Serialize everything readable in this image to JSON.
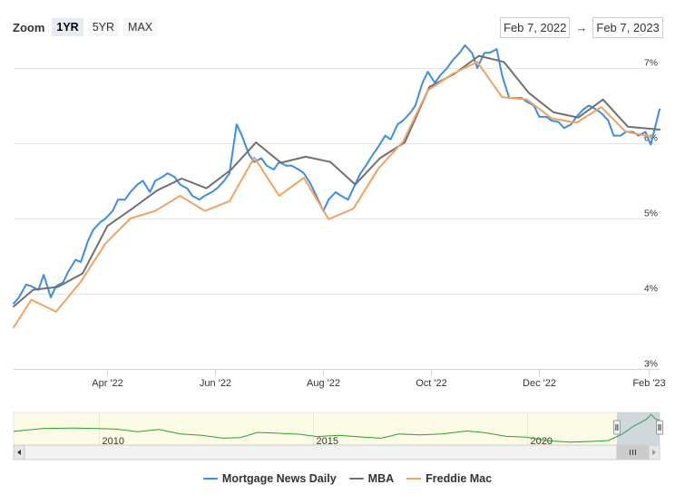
{
  "zoom": {
    "label": "Zoom",
    "buttons": [
      "1YR",
      "5YR",
      "MAX"
    ],
    "active": "1YR"
  },
  "range": {
    "from": "Feb 7, 2022",
    "arrow": "→",
    "to": "Feb 7, 2023"
  },
  "colors": {
    "mnd": "#3d8ee0",
    "mba": "#707070",
    "freddie": "#f2a25f",
    "grid": "#e6e6e6",
    "navigator_fill": "#fcfce6",
    "navigator_line": "#2ca02c"
  },
  "chart_data": {
    "type": "line",
    "ylim": [
      3,
      7.3
    ],
    "y_ticks": [
      3,
      4,
      5,
      6,
      7
    ],
    "y_tick_labels": [
      "3%",
      "4%",
      "5%",
      "6%",
      "7%"
    ],
    "x_range": [
      "2022-02-07",
      "2023-02-07"
    ],
    "x_ticks": [
      "2022-04-01",
      "2022-06-01",
      "2022-08-01",
      "2022-10-01",
      "2022-12-01",
      "2023-02-01"
    ],
    "x_tick_labels": [
      "Apr '22",
      "Jun '22",
      "Aug '22",
      "Oct '22",
      "Dec '22",
      "Feb '23"
    ],
    "series": [
      {
        "name": "Mortgage News Daily",
        "key": "mnd",
        "points": [
          [
            "2022-02-07",
            3.87
          ],
          [
            "2022-02-10",
            3.95
          ],
          [
            "2022-02-14",
            4.12
          ],
          [
            "2022-02-17",
            4.1
          ],
          [
            "2022-02-21",
            4.05
          ],
          [
            "2022-02-24",
            4.25
          ],
          [
            "2022-02-28",
            3.95
          ],
          [
            "2022-03-03",
            4.1
          ],
          [
            "2022-03-07",
            4.15
          ],
          [
            "2022-03-10",
            4.3
          ],
          [
            "2022-03-14",
            4.45
          ],
          [
            "2022-03-17",
            4.42
          ],
          [
            "2022-03-21",
            4.7
          ],
          [
            "2022-03-24",
            4.85
          ],
          [
            "2022-03-28",
            4.95
          ],
          [
            "2022-03-31",
            5.0
          ],
          [
            "2022-04-04",
            5.1
          ],
          [
            "2022-04-07",
            5.25
          ],
          [
            "2022-04-11",
            5.25
          ],
          [
            "2022-04-14",
            5.35
          ],
          [
            "2022-04-18",
            5.45
          ],
          [
            "2022-04-21",
            5.5
          ],
          [
            "2022-04-25",
            5.35
          ],
          [
            "2022-04-28",
            5.5
          ],
          [
            "2022-05-02",
            5.55
          ],
          [
            "2022-05-05",
            5.6
          ],
          [
            "2022-05-09",
            5.55
          ],
          [
            "2022-05-12",
            5.45
          ],
          [
            "2022-05-16",
            5.4
          ],
          [
            "2022-05-19",
            5.3
          ],
          [
            "2022-05-23",
            5.25
          ],
          [
            "2022-05-26",
            5.3
          ],
          [
            "2022-05-30",
            5.35
          ],
          [
            "2022-06-02",
            5.4
          ],
          [
            "2022-06-06",
            5.5
          ],
          [
            "2022-06-09",
            5.6
          ],
          [
            "2022-06-13",
            6.25
          ],
          [
            "2022-06-16",
            6.1
          ],
          [
            "2022-06-20",
            5.85
          ],
          [
            "2022-06-23",
            5.75
          ],
          [
            "2022-06-27",
            5.8
          ],
          [
            "2022-06-30",
            5.7
          ],
          [
            "2022-07-04",
            5.65
          ],
          [
            "2022-07-07",
            5.75
          ],
          [
            "2022-07-11",
            5.7
          ],
          [
            "2022-07-14",
            5.7
          ],
          [
            "2022-07-18",
            5.65
          ],
          [
            "2022-07-21",
            5.6
          ],
          [
            "2022-07-25",
            5.45
          ],
          [
            "2022-07-28",
            5.3
          ],
          [
            "2022-08-01",
            5.1
          ],
          [
            "2022-08-04",
            5.25
          ],
          [
            "2022-08-08",
            5.35
          ],
          [
            "2022-08-11",
            5.3
          ],
          [
            "2022-08-15",
            5.25
          ],
          [
            "2022-08-18",
            5.4
          ],
          [
            "2022-08-22",
            5.6
          ],
          [
            "2022-08-25",
            5.7
          ],
          [
            "2022-08-29",
            5.85
          ],
          [
            "2022-09-01",
            5.95
          ],
          [
            "2022-09-05",
            6.1
          ],
          [
            "2022-09-08",
            6.05
          ],
          [
            "2022-09-12",
            6.25
          ],
          [
            "2022-09-15",
            6.3
          ],
          [
            "2022-09-19",
            6.4
          ],
          [
            "2022-09-22",
            6.5
          ],
          [
            "2022-09-26",
            6.8
          ],
          [
            "2022-09-29",
            6.95
          ],
          [
            "2022-10-03",
            6.8
          ],
          [
            "2022-10-06",
            6.9
          ],
          [
            "2022-10-10",
            7.0
          ],
          [
            "2022-10-13",
            7.1
          ],
          [
            "2022-10-17",
            7.2
          ],
          [
            "2022-10-20",
            7.3
          ],
          [
            "2022-10-24",
            7.2
          ],
          [
            "2022-10-27",
            7.0
          ],
          [
            "2022-10-31",
            7.2
          ],
          [
            "2022-11-03",
            7.2
          ],
          [
            "2022-11-07",
            7.25
          ],
          [
            "2022-11-10",
            6.9
          ],
          [
            "2022-11-14",
            6.6
          ],
          [
            "2022-11-17",
            6.6
          ],
          [
            "2022-11-21",
            6.6
          ],
          [
            "2022-11-24",
            6.55
          ],
          [
            "2022-11-28",
            6.5
          ],
          [
            "2022-12-01",
            6.35
          ],
          [
            "2022-12-05",
            6.35
          ],
          [
            "2022-12-08",
            6.3
          ],
          [
            "2022-12-12",
            6.28
          ],
          [
            "2022-12-15",
            6.2
          ],
          [
            "2022-12-19",
            6.25
          ],
          [
            "2022-12-22",
            6.35
          ],
          [
            "2022-12-26",
            6.45
          ],
          [
            "2022-12-29",
            6.5
          ],
          [
            "2023-01-02",
            6.45
          ],
          [
            "2023-01-05",
            6.4
          ],
          [
            "2023-01-09",
            6.3
          ],
          [
            "2023-01-12",
            6.1
          ],
          [
            "2023-01-16",
            6.1
          ],
          [
            "2023-01-19",
            6.15
          ],
          [
            "2023-01-23",
            6.15
          ],
          [
            "2023-01-26",
            6.1
          ],
          [
            "2023-01-30",
            6.15
          ],
          [
            "2023-02-02",
            5.98
          ],
          [
            "2023-02-07",
            6.45
          ]
        ]
      },
      {
        "name": "MBA",
        "key": "mba",
        "points": [
          [
            "2022-02-07",
            3.83
          ],
          [
            "2022-02-18",
            4.05
          ],
          [
            "2022-03-04",
            4.09
          ],
          [
            "2022-03-18",
            4.27
          ],
          [
            "2022-04-01",
            4.9
          ],
          [
            "2022-04-15",
            5.13
          ],
          [
            "2022-04-29",
            5.37
          ],
          [
            "2022-05-13",
            5.53
          ],
          [
            "2022-05-27",
            5.4
          ],
          [
            "2022-06-10",
            5.65
          ],
          [
            "2022-06-24",
            6.01
          ],
          [
            "2022-07-08",
            5.74
          ],
          [
            "2022-07-22",
            5.82
          ],
          [
            "2022-08-05",
            5.75
          ],
          [
            "2022-08-19",
            5.45
          ],
          [
            "2022-09-02",
            5.8
          ],
          [
            "2022-09-16",
            6.01
          ],
          [
            "2022-09-30",
            6.75
          ],
          [
            "2022-10-14",
            6.92
          ],
          [
            "2022-10-28",
            7.16
          ],
          [
            "2022-11-11",
            7.08
          ],
          [
            "2022-11-25",
            6.67
          ],
          [
            "2022-12-09",
            6.41
          ],
          [
            "2022-12-23",
            6.34
          ],
          [
            "2023-01-06",
            6.58
          ],
          [
            "2023-01-20",
            6.22
          ],
          [
            "2023-02-07",
            6.18
          ]
        ]
      },
      {
        "name": "Freddie Mac",
        "key": "freddie",
        "points": [
          [
            "2022-02-07",
            3.55
          ],
          [
            "2022-02-17",
            3.92
          ],
          [
            "2022-03-03",
            3.76
          ],
          [
            "2022-03-17",
            4.16
          ],
          [
            "2022-03-31",
            4.67
          ],
          [
            "2022-04-14",
            5.0
          ],
          [
            "2022-04-28",
            5.1
          ],
          [
            "2022-05-12",
            5.3
          ],
          [
            "2022-05-26",
            5.1
          ],
          [
            "2022-06-09",
            5.23
          ],
          [
            "2022-06-23",
            5.81
          ],
          [
            "2022-07-07",
            5.3
          ],
          [
            "2022-07-21",
            5.54
          ],
          [
            "2022-08-04",
            4.99
          ],
          [
            "2022-08-18",
            5.13
          ],
          [
            "2022-09-01",
            5.66
          ],
          [
            "2022-09-15",
            6.02
          ],
          [
            "2022-09-29",
            6.7
          ],
          [
            "2022-10-13",
            6.92
          ],
          [
            "2022-10-27",
            7.08
          ],
          [
            "2022-11-10",
            6.61
          ],
          [
            "2022-11-24",
            6.58
          ],
          [
            "2022-12-08",
            6.33
          ],
          [
            "2022-12-22",
            6.27
          ],
          [
            "2023-01-05",
            6.48
          ],
          [
            "2023-01-19",
            6.15
          ],
          [
            "2023-02-02",
            6.09
          ]
        ]
      }
    ],
    "navigator": {
      "labels": [
        "2010",
        "2015",
        "2020"
      ],
      "years": [
        2008,
        2023.1
      ],
      "label_years": [
        2010,
        2015,
        2020
      ],
      "selected": [
        2022.1,
        2023.1
      ],
      "points": [
        [
          2008.0,
          4.6
        ],
        [
          2008.7,
          5.05
        ],
        [
          2009.4,
          5.1
        ],
        [
          2009.9,
          5.05
        ],
        [
          2010.4,
          4.95
        ],
        [
          2010.9,
          4.55
        ],
        [
          2011.4,
          4.9
        ],
        [
          2011.9,
          4.2
        ],
        [
          2012.4,
          4.0
        ],
        [
          2012.9,
          3.55
        ],
        [
          2013.3,
          3.65
        ],
        [
          2013.7,
          4.45
        ],
        [
          2014.2,
          4.3
        ],
        [
          2014.7,
          4.15
        ],
        [
          2015.1,
          3.8
        ],
        [
          2015.6,
          4.0
        ],
        [
          2016.1,
          3.75
        ],
        [
          2016.6,
          3.55
        ],
        [
          2017.0,
          4.2
        ],
        [
          2017.5,
          4.05
        ],
        [
          2018.0,
          4.2
        ],
        [
          2018.6,
          4.65
        ],
        [
          2019.0,
          4.4
        ],
        [
          2019.5,
          3.85
        ],
        [
          2020.0,
          3.7
        ],
        [
          2020.5,
          3.15
        ],
        [
          2021.0,
          2.95
        ],
        [
          2021.5,
          3.05
        ],
        [
          2021.9,
          3.2
        ],
        [
          2022.2,
          4.1
        ],
        [
          2022.5,
          5.4
        ],
        [
          2022.8,
          6.5
        ],
        [
          2022.9,
          7.2
        ],
        [
          2023.0,
          6.5
        ],
        [
          2023.1,
          6.3
        ]
      ],
      "ylim": [
        2.5,
        7.5
      ]
    }
  },
  "legend": [
    {
      "label": "Mortgage News Daily",
      "key": "mnd"
    },
    {
      "label": "MBA",
      "key": "mba"
    },
    {
      "label": "Freddie Mac",
      "key": "freddie"
    }
  ]
}
